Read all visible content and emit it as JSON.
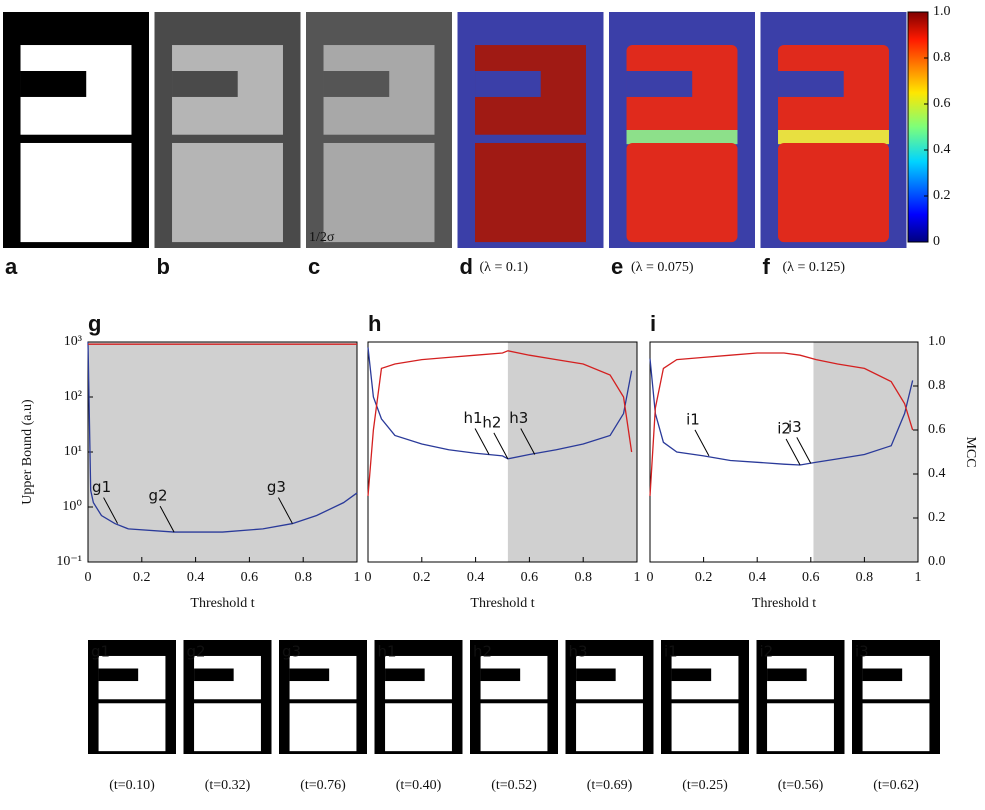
{
  "panels": [
    {
      "letter": "a"
    },
    {
      "letter": "b"
    },
    {
      "letter": "c",
      "scale_label": "1/2σ"
    },
    {
      "letter": "d",
      "caption": "(λ = 0.1)"
    },
    {
      "letter": "e",
      "caption": "(λ = 0.075)"
    },
    {
      "letter": "f",
      "caption": "(λ = 0.125)"
    }
  ],
  "colorbar": {
    "ticks": [
      0,
      0.2,
      0.4,
      0.6,
      0.8,
      {
        "value": 1,
        "label": "1.0"
      }
    ],
    "lim": [
      0,
      1
    ]
  },
  "chart_data": [
    {
      "type": "line",
      "panel": "g",
      "log_y": true,
      "xlim": [
        0,
        1
      ],
      "xticks": [
        0,
        0.2,
        0.4,
        0.6,
        0.8,
        1
      ],
      "ylim": [
        0.1,
        1000
      ],
      "yticks": [
        {
          "value": 0.1,
          "label": "10⁻¹"
        },
        {
          "value": 1,
          "label": "10⁰"
        },
        {
          "value": 10,
          "label": "10¹"
        },
        {
          "value": 100,
          "label": "10²"
        },
        {
          "value": 1000,
          "label": "10³"
        }
      ],
      "y2lim": [
        0,
        1
      ],
      "xlabel": "Threshold t",
      "ylabel": "Upper Bound (a.u)",
      "shaded_region": [
        0,
        1
      ],
      "x": [
        0,
        0.01,
        0.02,
        0.05,
        0.1,
        0.15,
        0.32,
        0.5,
        0.65,
        0.76,
        0.85,
        0.95,
        1
      ],
      "series": [
        {
          "color": "#2a3a9a",
          "values": [
            1000,
            2,
            1.2,
            0.7,
            0.5,
            0.4,
            0.35,
            0.35,
            0.4,
            0.5,
            0.7,
            1.2,
            1.8
          ]
        },
        {
          "color": "#d42020",
          "axis": "y2",
          "values": [
            0.99,
            0.99,
            0.99,
            0.99,
            0.99,
            0.99,
            0.99,
            0.99,
            0.99,
            0.99,
            0.99,
            0.99,
            0.99
          ]
        }
      ],
      "annotations": [
        {
          "text": "g1",
          "x": 0.11,
          "y": 0.5
        },
        {
          "text": "g2",
          "x": 0.32,
          "y": 0.35
        },
        {
          "text": "g3",
          "x": 0.76,
          "y": 0.5
        }
      ]
    },
    {
      "type": "line",
      "panel": "h",
      "log_y": true,
      "xlim": [
        0,
        1
      ],
      "xticks": [
        0,
        0.2,
        0.4,
        0.6,
        0.8,
        1
      ],
      "ylim": [
        0.1,
        1000
      ],
      "y2lim": [
        0,
        1
      ],
      "xlabel": "Threshold t",
      "shaded_region": [
        0.52,
        1
      ],
      "x": [
        0,
        0.02,
        0.05,
        0.1,
        0.2,
        0.3,
        0.4,
        0.5,
        0.52,
        0.6,
        0.7,
        0.8,
        0.9,
        0.95,
        0.98
      ],
      "series": [
        {
          "color": "#2a3a9a",
          "values": [
            800,
            100,
            40,
            20,
            14,
            11,
            9.5,
            8.5,
            7.5,
            9,
            11,
            14,
            20,
            50,
            300
          ]
        },
        {
          "color": "#d42020",
          "axis": "y2",
          "values": [
            0.3,
            0.6,
            0.88,
            0.9,
            0.92,
            0.93,
            0.94,
            0.95,
            0.96,
            0.94,
            0.92,
            0.9,
            0.85,
            0.75,
            0.5
          ]
        }
      ],
      "annotations": [
        {
          "text": "h1",
          "x": 0.45,
          "y": 9
        },
        {
          "text": "h2",
          "x": 0.52,
          "y": 7.5
        },
        {
          "text": "h3",
          "x": 0.62,
          "y": 9
        }
      ]
    },
    {
      "type": "line",
      "panel": "i",
      "log_y": true,
      "xlim": [
        0,
        1
      ],
      "xticks": [
        0,
        0.2,
        0.4,
        0.6,
        0.8,
        1
      ],
      "ylim": [
        0.1,
        1000
      ],
      "y2lim": [
        0,
        1
      ],
      "y2ticks": [
        {
          "value": 0,
          "label": "0.0"
        },
        0.2,
        0.4,
        0.6,
        0.8,
        {
          "value": 1,
          "label": "1.0"
        }
      ],
      "xlabel": "Threshold t",
      "y2label": "MCC",
      "shaded_region": [
        0.61,
        1
      ],
      "x": [
        0,
        0.02,
        0.05,
        0.1,
        0.2,
        0.3,
        0.4,
        0.5,
        0.56,
        0.62,
        0.7,
        0.8,
        0.9,
        0.95,
        0.98
      ],
      "series": [
        {
          "color": "#2a3a9a",
          "values": [
            500,
            50,
            15,
            10,
            8.5,
            7,
            6.5,
            6,
            5.8,
            6.5,
            7.5,
            9,
            13,
            50,
            200
          ]
        },
        {
          "color": "#d42020",
          "axis": "y2",
          "values": [
            0.3,
            0.7,
            0.88,
            0.92,
            0.93,
            0.94,
            0.95,
            0.95,
            0.94,
            0.92,
            0.9,
            0.88,
            0.82,
            0.72,
            0.6
          ]
        }
      ],
      "annotations": [
        {
          "text": "i1",
          "x": 0.22,
          "y": 8.5
        },
        {
          "text": "i2",
          "x": 0.56,
          "y": 5.8
        },
        {
          "text": "i3",
          "x": 0.6,
          "y": 6.2
        }
      ]
    }
  ],
  "thumbnails": [
    {
      "label": "g1",
      "caption": "(t=0.10)"
    },
    {
      "label": "g2",
      "caption": "(t=0.32)"
    },
    {
      "label": "g3",
      "caption": "(t=0.76)"
    },
    {
      "label": "h1",
      "caption": "(t=0.40)"
    },
    {
      "label": "h2",
      "caption": "(t=0.52)"
    },
    {
      "label": "h3",
      "caption": "(t=0.69)"
    },
    {
      "label": "i1",
      "caption": "(t=0.25)"
    },
    {
      "label": "i2",
      "caption": "(t=0.56)"
    },
    {
      "label": "i3",
      "caption": "(t=0.62)"
    }
  ]
}
